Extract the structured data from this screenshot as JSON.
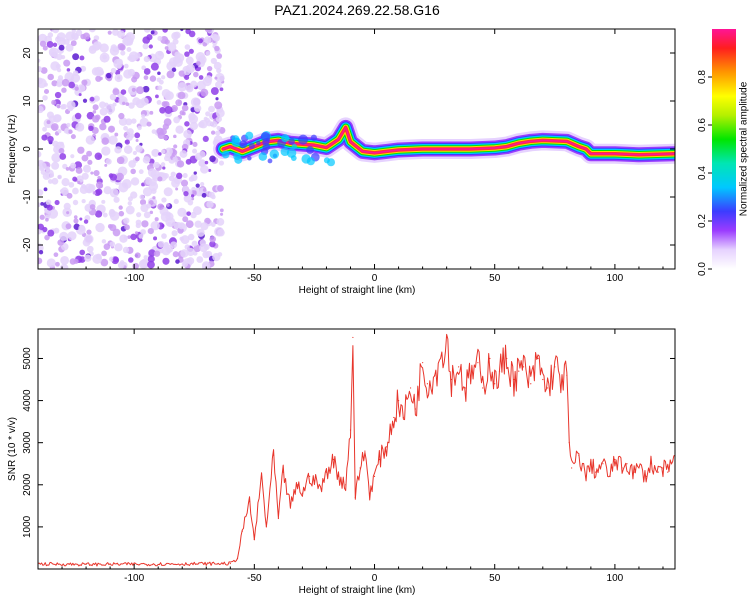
{
  "chart_data": [
    {
      "type": "heatmap",
      "title": "PAZ1.2024.269.22.58.G16",
      "xlabel": "Height of straight line (km)",
      "ylabel": "Frequency (Hz)",
      "xlim": [
        -140,
        125
      ],
      "ylim": [
        -25,
        25
      ],
      "xticks": [
        -100,
        -50,
        0,
        50,
        100
      ],
      "yticks": [
        -20,
        -10,
        0,
        10,
        20
      ],
      "colorbar": {
        "label": "Normalized spectral amplitude",
        "range": [
          0,
          1
        ],
        "ticks": [
          0.0,
          0.2,
          0.4,
          0.6,
          0.8
        ]
      },
      "noise_region_x": [
        -140,
        -63
      ],
      "signal_ridge": {
        "x": [
          -63,
          -60,
          -55,
          -50,
          -45,
          -40,
          -35,
          -30,
          -25,
          -20,
          -15,
          -12,
          -10,
          -5,
          0,
          5,
          10,
          20,
          30,
          40,
          50,
          55,
          60,
          65,
          70,
          80,
          85,
          88,
          90,
          100,
          110,
          125
        ],
        "y": [
          0,
          0.5,
          -0.5,
          0.5,
          1.5,
          1.8,
          1.2,
          1.0,
          0.8,
          0.3,
          2.0,
          4.5,
          1.5,
          -0.5,
          -0.8,
          -0.5,
          -0.2,
          0.0,
          0.0,
          0.0,
          0.2,
          0.5,
          1.2,
          1.6,
          1.8,
          1.6,
          0.5,
          0.0,
          -1.0,
          -1.0,
          -1.2,
          -1.0
        ]
      }
    },
    {
      "type": "line",
      "title": "",
      "xlabel": "Height of straight line (km)",
      "ylabel": "SNR (10 * v/v)",
      "xlim": [
        -140,
        125
      ],
      "ylim": [
        0,
        5700
      ],
      "xticks": [
        -100,
        -50,
        0,
        50,
        100
      ],
      "yticks": [
        1000,
        2000,
        3000,
        4000,
        5000
      ],
      "color": "#e8352b",
      "series": [
        {
          "x": [
            -140,
            -120,
            -100,
            -80,
            -60,
            -57,
            -55,
            -52,
            -50,
            -47,
            -45,
            -42,
            -40,
            -38,
            -35,
            -32,
            -30,
            -27,
            -25,
            -22,
            -20,
            -17,
            -15,
            -12,
            -10,
            -9,
            -8,
            -6,
            -4,
            -2,
            0,
            2,
            5,
            8,
            10,
            12,
            15,
            17,
            20,
            22,
            25,
            28,
            30,
            32,
            35,
            38,
            40,
            43,
            45,
            48,
            50,
            52,
            55,
            58,
            60,
            62,
            65,
            68,
            70,
            72,
            75,
            78,
            80,
            81,
            82,
            85,
            88,
            90,
            92,
            95,
            98,
            100,
            103,
            105,
            108,
            110,
            113,
            115,
            118,
            120,
            122,
            125
          ],
          "y": [
            120,
            110,
            115,
            120,
            130,
            250,
            900,
            1600,
            700,
            2200,
            1000,
            2700,
            1200,
            2300,
            1500,
            2000,
            1800,
            2200,
            2100,
            1900,
            2300,
            2600,
            2200,
            2000,
            3300,
            5500,
            1700,
            2400,
            2800,
            1800,
            2200,
            2600,
            2900,
            3600,
            4000,
            3600,
            4300,
            3800,
            4900,
            4400,
            4600,
            5100,
            5500,
            4500,
            4800,
            4300,
            4600,
            4900,
            4300,
            5000,
            4400,
            4700,
            5000,
            4500,
            4700,
            4800,
            4400,
            5000,
            4500,
            4300,
            4800,
            4500,
            4600,
            3000,
            2400,
            2700,
            2200,
            2500,
            2300,
            2500,
            2200,
            2600,
            2400,
            2500,
            2300,
            2400,
            2200,
            2500,
            2300,
            2400,
            2300,
            2700
          ]
        }
      ]
    }
  ]
}
